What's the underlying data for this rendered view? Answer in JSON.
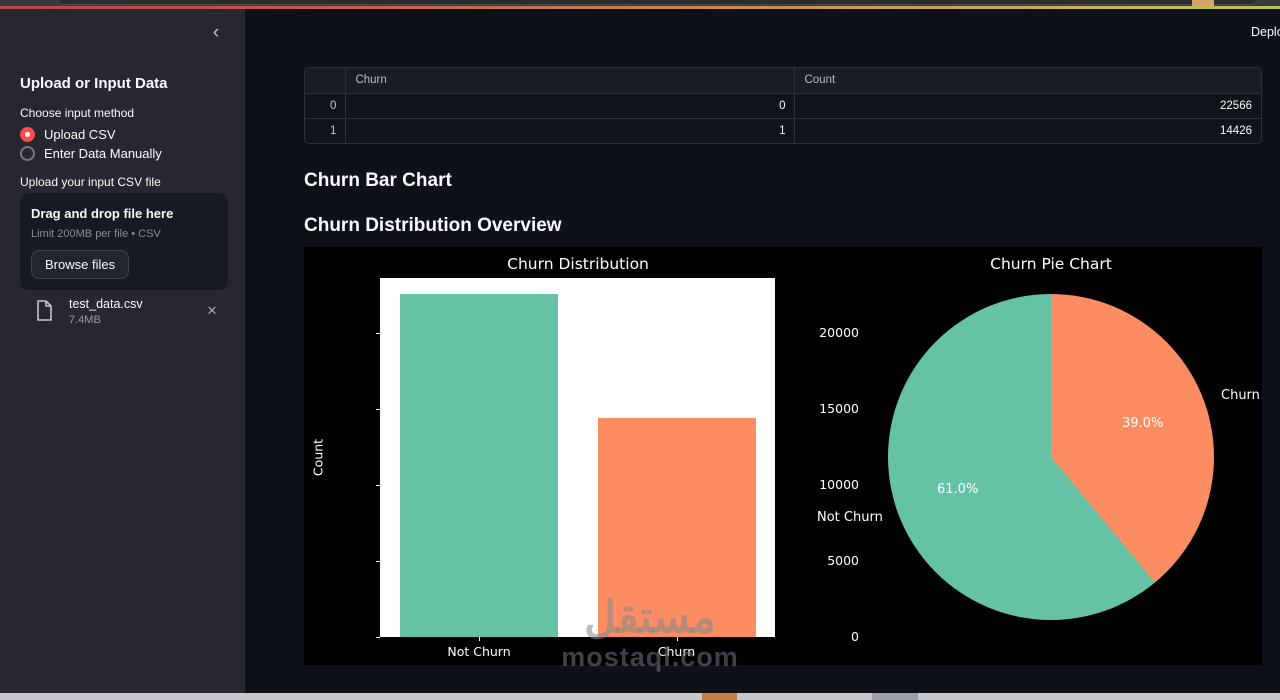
{
  "header": {
    "deploy_label": "Deploy"
  },
  "sidebar": {
    "title": "Upload or Input Data",
    "input_method": {
      "label": "Choose input method",
      "options": [
        {
          "label": "Upload CSV",
          "selected": true
        },
        {
          "label": "Enter Data Manually",
          "selected": false
        }
      ]
    },
    "uploader": {
      "label": "Upload your input CSV file",
      "drop_text": "Drag and drop file here",
      "limit_text": "Limit 200MB per file • CSV",
      "browse_label": "Browse files",
      "file": {
        "name": "test_data.csv",
        "size": "7.4MB",
        "remove_icon": "✕"
      }
    },
    "collapse_icon": "‹"
  },
  "main": {
    "table": {
      "columns": [
        "",
        "Churn",
        "Count"
      ],
      "rows": [
        {
          "index": "0",
          "churn": "0",
          "count": "22566"
        },
        {
          "index": "1",
          "churn": "1",
          "count": "14426"
        }
      ]
    },
    "headings": [
      "Churn Bar Chart",
      "Churn Distribution Overview"
    ]
  },
  "chart_data": [
    {
      "type": "bar",
      "title": "Churn Distribution",
      "categories": [
        "Not Churn",
        "Churn"
      ],
      "values": [
        22566,
        14426
      ],
      "xlabel": "",
      "ylabel": "Count",
      "yticks": [
        0,
        5000,
        10000,
        15000,
        20000
      ],
      "ylim": [
        0,
        23620
      ],
      "grid": false,
      "colors": [
        "#66c2a5",
        "#fc8d62"
      ],
      "plot_bg": "#ffffff",
      "figure_bg": "#010102"
    },
    {
      "type": "pie",
      "title": "Churn Pie Chart",
      "labels": [
        "Not Churn",
        "Churn"
      ],
      "values": [
        61.0,
        39.0
      ],
      "pct_labels": [
        "61.0%",
        "39.0%"
      ],
      "colors": [
        "#66c2a5",
        "#fc8d62"
      ],
      "start_angle_deg": 90,
      "direction": "counterclockwise"
    }
  ],
  "watermark": {
    "logo_text": "مستقل",
    "domain": "mostaql.com"
  },
  "accent_color": "#ff4b4b"
}
